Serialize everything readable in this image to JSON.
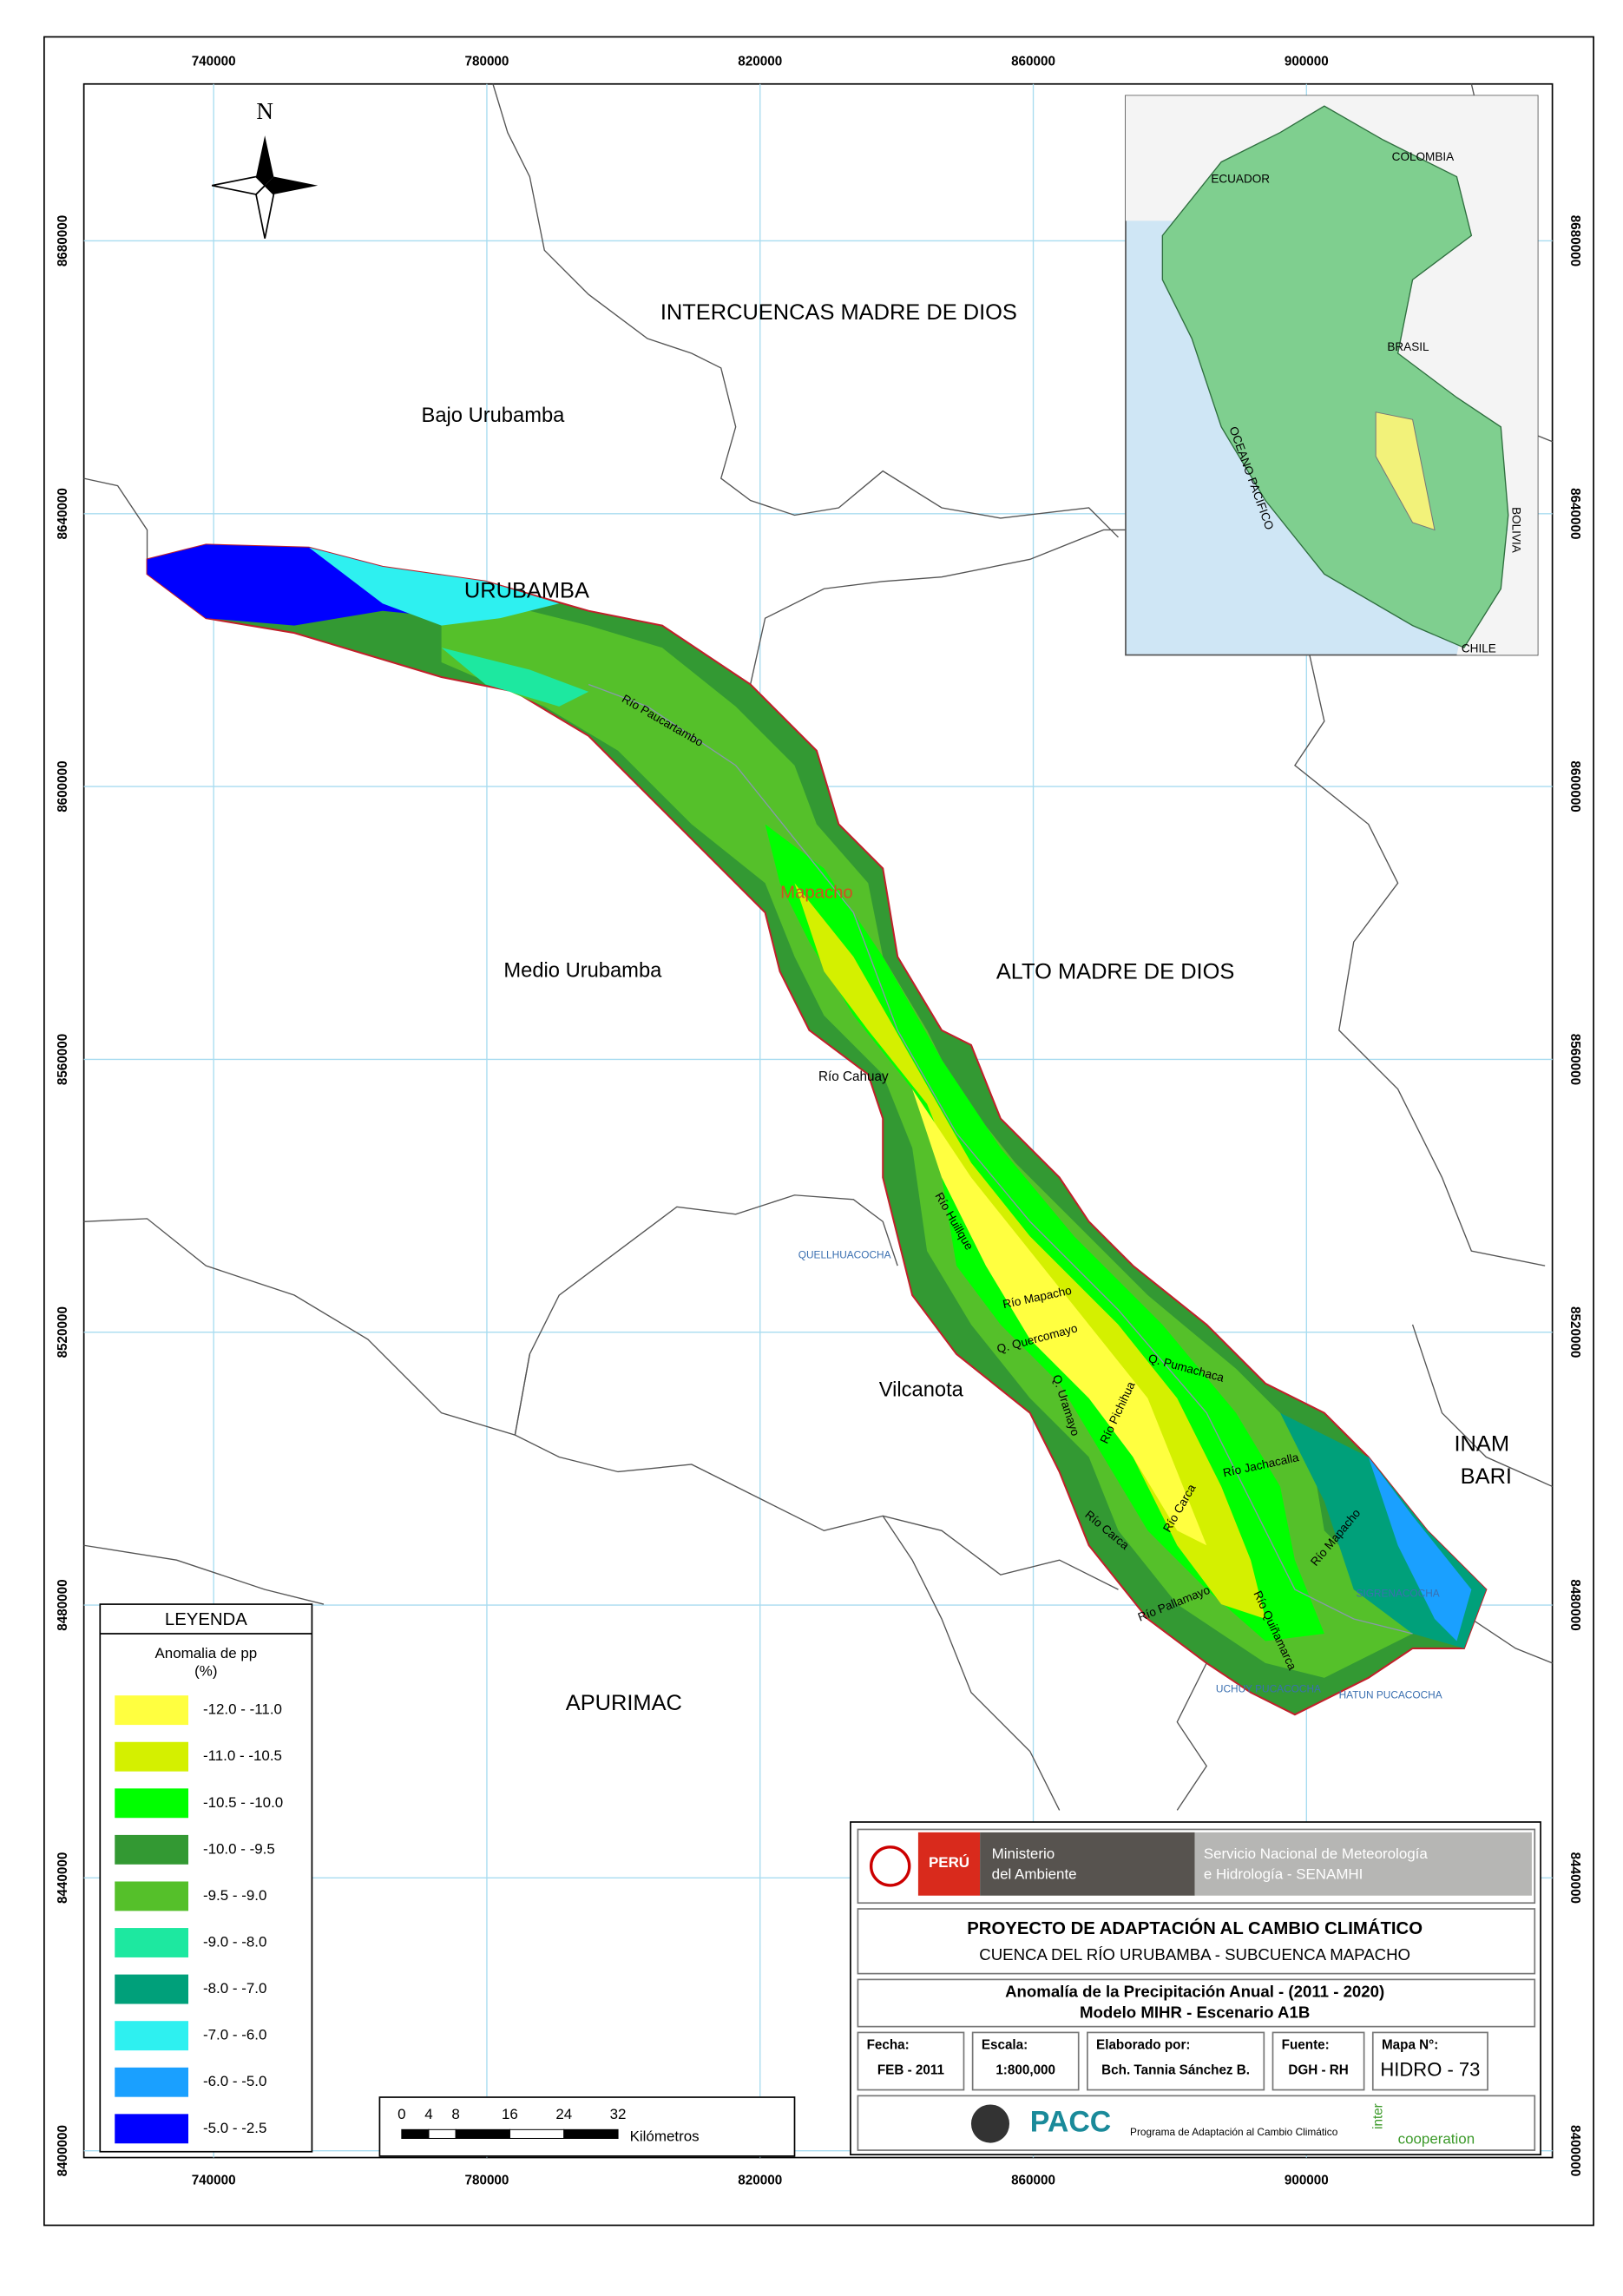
{
  "map": {
    "xlim": [
      721000,
      936000
    ],
    "ylim": [
      8399000,
      8703000
    ],
    "xticks": [
      740000,
      780000,
      820000,
      860000,
      900000
    ],
    "yticks": [
      8400000,
      8440000,
      8480000,
      8520000,
      8560000,
      8600000,
      8640000,
      8680000
    ],
    "north": "N",
    "regions": [
      "INTERCUENCAS MADRE DE DIOS",
      "Bajo Urubamba",
      "URUBAMBA",
      "Medio Urubamba",
      "ALTO MADRE DE DIOS",
      "Vilcanota",
      "INAM",
      "BARI",
      "APURIMAC"
    ],
    "rivers": [
      "Río Paucartambo",
      "Mapacho",
      "Río Cahuay",
      "Río Huillque",
      "Río Mapacho",
      "Q. Quercomayo",
      "Q. Uramayo",
      "Río Pichihua",
      "Q. Pumachaca",
      "Río Jachacalla",
      "Río Carca",
      "Río Carca",
      "Río Mapacho",
      "Río Pallamayo",
      "Río Quiñamarca"
    ],
    "lakes": [
      "QUELLHUACOCHA",
      "SIGRENACOCHA",
      "UCHUY PUCACOCHA",
      "HATUN PUCACOCHA"
    ],
    "inset": [
      "COLOMBIA",
      "ECUADOR",
      "BRASIL",
      "OCEANO PACIFICO",
      "BOLIVIA",
      "CHILE"
    ]
  },
  "legend": {
    "title": "LEYENDA",
    "subtitle": "Anomalia de pp",
    "unit": "(%)",
    "items": [
      {
        "label": "-12.0 - -11.0",
        "color": "#ffff40"
      },
      {
        "label": "-11.0 - -10.5",
        "color": "#d4f000"
      },
      {
        "label": "-10.5 - -10.0",
        "color": "#00ff00"
      },
      {
        "label": "-10.0 - -9.5",
        "color": "#339933"
      },
      {
        "label": "-9.5 - -9.0",
        "color": "#55c02a"
      },
      {
        "label": "-9.0 - -8.0",
        "color": "#1de8a0"
      },
      {
        "label": "-8.0 - -7.0",
        "color": "#00a07a"
      },
      {
        "label": "-7.0 - -6.0",
        "color": "#2ef0f0"
      },
      {
        "label": "-6.0 - -5.0",
        "color": "#1aa0ff"
      },
      {
        "label": "-5.0 - -2.5",
        "color": "#0000ff"
      }
    ]
  },
  "scale_bar": {
    "ticks": [
      0,
      4,
      8,
      16,
      24,
      32
    ],
    "unit": "Kilómetros"
  },
  "title_block": {
    "country": "PERÚ",
    "ministry": [
      "Ministerio",
      "del Ambiente"
    ],
    "service": [
      "Servicio Nacional de Meteorología",
      "e Hidrología - SENAMHI"
    ],
    "project": "PROYECTO DE ADAPTACIÓN AL CAMBIO CLIMÁTICO",
    "basin": "CUENCA DEL RÍO URUBAMBA - SUBCUENCA MAPACHO",
    "title": "Anomalía de la Precipitación Anual - (2011 - 2020)",
    "model": "Modelo MIHR - Escenario A1B",
    "fields": [
      {
        "label": "Fecha:",
        "value": "FEB - 2011"
      },
      {
        "label": "Escala:",
        "value": "1:800,000"
      },
      {
        "label": "Elaborado por:",
        "value": "Bch. Tannia Sánchez B."
      },
      {
        "label": "Fuente:",
        "value": "DGH - RH"
      },
      {
        "label": "Mapa N°:",
        "value": "HIDRO - 73"
      }
    ],
    "pacc": "PACC",
    "pacc_name": "Programa de Adaptación al Cambio Climático",
    "partner": [
      "inter",
      "cooperation"
    ]
  }
}
